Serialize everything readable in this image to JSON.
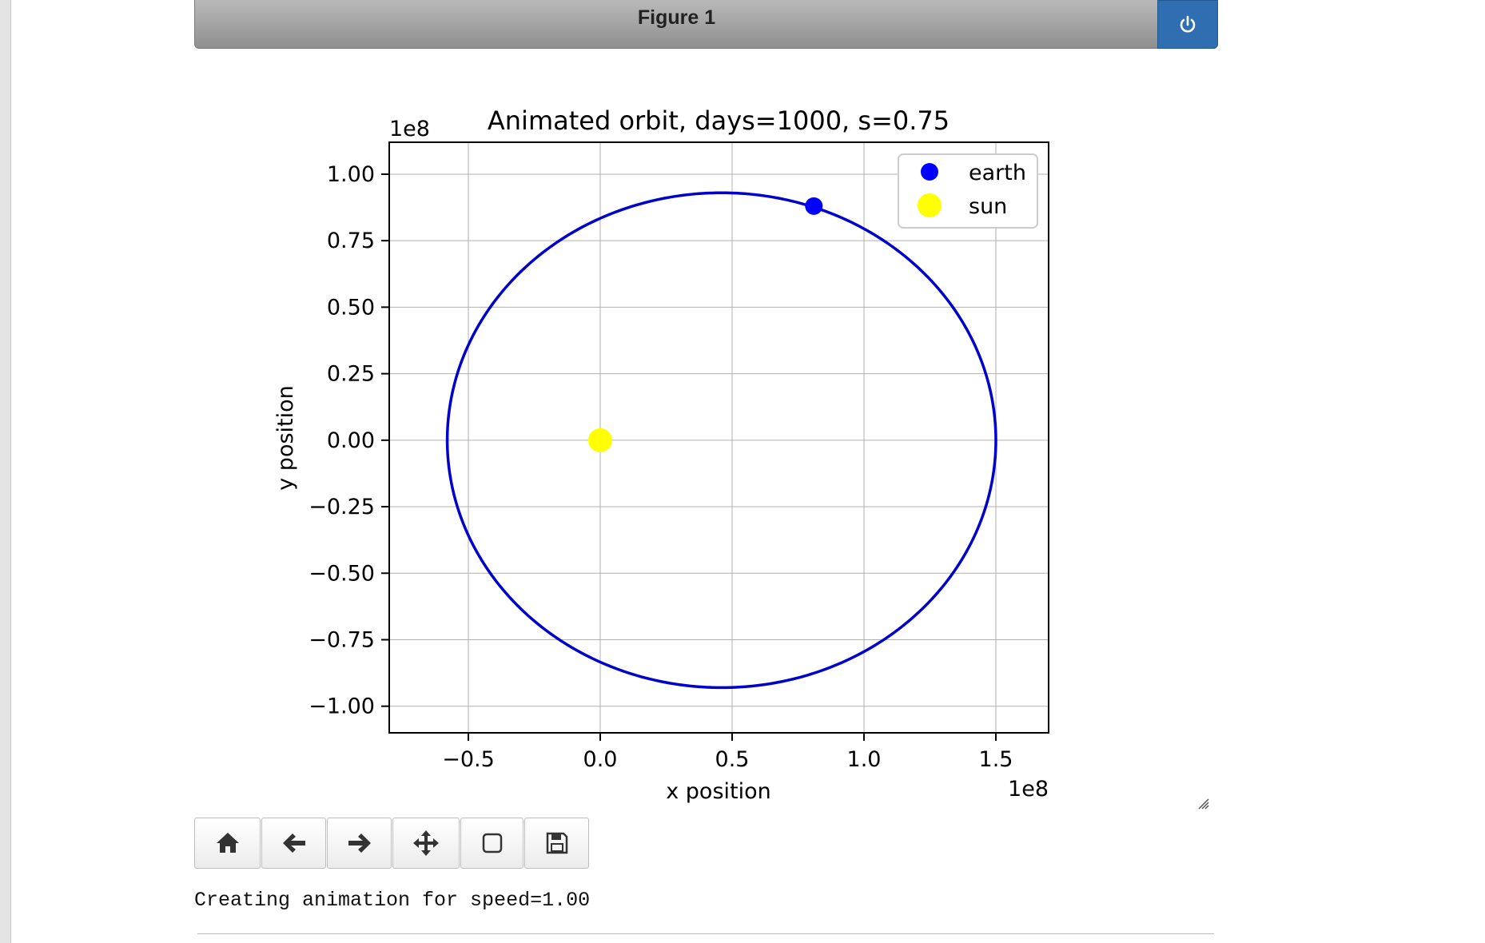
{
  "window": {
    "title": "Figure 1"
  },
  "toolbar": {
    "buttons": [
      {
        "name": "home-button",
        "icon": "home-icon"
      },
      {
        "name": "back-button",
        "icon": "arrow-left-icon"
      },
      {
        "name": "forward-button",
        "icon": "arrow-right-icon"
      },
      {
        "name": "pan-button",
        "icon": "move-icon"
      },
      {
        "name": "zoom-button",
        "icon": "square-icon"
      },
      {
        "name": "save-button",
        "icon": "floppy-disk-icon"
      }
    ]
  },
  "status_text": "Creating animation for speed=1.00",
  "colors": {
    "header_button": "#2f6eb0",
    "earth": "#0000ff",
    "sun": "#ffff00",
    "orbit": "#0000cc"
  },
  "chart_data": {
    "type": "scatter",
    "title": "Animated orbit, days=1000, s=0.75",
    "xlabel": "x position",
    "ylabel": "y position",
    "x_offset_text": "1e8",
    "y_offset_text": "1e8",
    "xlim": [
      -0.8,
      1.7
    ],
    "ylim": [
      -1.1,
      1.12
    ],
    "xticks": [
      -0.5,
      0.0,
      0.5,
      1.0,
      1.5
    ],
    "xtick_labels": [
      "−0.5",
      "0.0",
      "0.5",
      "1.0",
      "1.5"
    ],
    "yticks": [
      1.0,
      0.75,
      0.5,
      0.25,
      0.0,
      -0.25,
      -0.5,
      -0.75,
      -1.0
    ],
    "ytick_labels": [
      "1.00",
      "0.75",
      "0.50",
      "0.25",
      "0.00",
      "−0.25",
      "−0.50",
      "−0.75",
      "−1.00"
    ],
    "grid": true,
    "legend_position": "top-right",
    "orbit": {
      "center": [
        0.46,
        0.0
      ],
      "semi_major": 1.04,
      "semi_minor": 0.93
    },
    "series": [
      {
        "name": "earth",
        "x": [
          0.81
        ],
        "y": [
          0.88
        ],
        "color": "#0000ff"
      },
      {
        "name": "sun",
        "x": [
          0.0
        ],
        "y": [
          0.0
        ],
        "color": "#ffff00"
      }
    ]
  }
}
